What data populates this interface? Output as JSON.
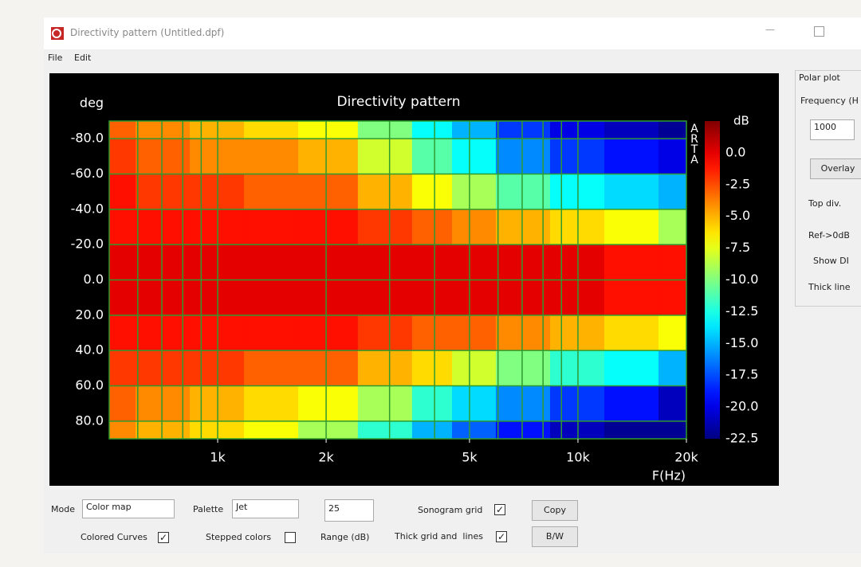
{
  "window": {
    "title": "Directivity pattern (Untitled.dpf)",
    "menu": [
      "File",
      "Edit"
    ]
  },
  "chart_data": {
    "type": "heatmap",
    "title": "Directivity pattern",
    "y_label": "deg",
    "x_label": "F(Hz)",
    "watermark": "ARTA",
    "colorbar_label": "dB",
    "colormap": "jet",
    "log_x": true,
    "grid": true,
    "grid_color": "#2f9a2f",
    "x": [
      500,
      700,
      1000,
      1400,
      2000,
      3000,
      4000,
      5000,
      7000,
      10000,
      14000,
      20000
    ],
    "y": [
      -90,
      -70,
      -50,
      -30,
      -10,
      10,
      30,
      50,
      70,
      90
    ],
    "z": [
      [
        -3,
        -4,
        -5,
        -6,
        -7,
        -10,
        -13,
        -15,
        -18,
        -20,
        -21,
        -22
      ],
      [
        -2,
        -3,
        -4,
        -4,
        -5,
        -8,
        -11,
        -13,
        -16,
        -18,
        -19,
        -20
      ],
      [
        -1,
        -2,
        -2,
        -3,
        -3,
        -5,
        -7,
        -9,
        -11,
        -13,
        -14,
        -15
      ],
      [
        -1,
        -1,
        -1,
        -1,
        -1,
        -2,
        -3,
        -4,
        -5,
        -6,
        -7,
        -9
      ],
      [
        0,
        0,
        0,
        0,
        0,
        0,
        0,
        0,
        0,
        0,
        -1,
        -1
      ],
      [
        0,
        0,
        0,
        0,
        0,
        0,
        0,
        0,
        0,
        0,
        -1,
        -1
      ],
      [
        -1,
        -1,
        -1,
        -1,
        -1,
        -2,
        -3,
        -3,
        -4,
        -5,
        -6,
        -7
      ],
      [
        -2,
        -2,
        -2,
        -3,
        -3,
        -5,
        -6,
        -8,
        -10,
        -12,
        -13,
        -15
      ],
      [
        -3,
        -4,
        -5,
        -6,
        -7,
        -9,
        -12,
        -14,
        -16,
        -18,
        -19,
        -21
      ],
      [
        -4,
        -5,
        -6,
        -7,
        -9,
        -12,
        -15,
        -17,
        -19,
        -21,
        -22,
        -22
      ]
    ],
    "xlim": [
      500,
      20000
    ],
    "ylim": [
      -90,
      90
    ],
    "xticks": [
      {
        "value": 1000,
        "label": "1k"
      },
      {
        "value": 2000,
        "label": "2k"
      },
      {
        "value": 5000,
        "label": "5k"
      },
      {
        "value": 10000,
        "label": "10k"
      },
      {
        "value": 20000,
        "label": "20k"
      }
    ],
    "xgrid": [
      600,
      700,
      800,
      900,
      1000,
      2000,
      3000,
      4000,
      5000,
      6000,
      7000,
      8000,
      9000,
      10000
    ],
    "yticks": [
      {
        "value": -80,
        "label": "-80.0"
      },
      {
        "value": -60,
        "label": "-60.0"
      },
      {
        "value": -40,
        "label": "-40.0"
      },
      {
        "value": -20,
        "label": "-20.0"
      },
      {
        "value": 0,
        "label": "0.0"
      },
      {
        "value": 20,
        "label": "20.0"
      },
      {
        "value": 40,
        "label": "40.0"
      },
      {
        "value": 60,
        "label": "60.0"
      },
      {
        "value": 80,
        "label": "80.0"
      }
    ],
    "clim": [
      -22.5,
      2.5
    ],
    "cticks": [
      {
        "value": 0,
        "label": "0.0"
      },
      -2.5,
      {
        "value": -5,
        "label": "-5.0"
      },
      -7.5,
      {
        "value": -10,
        "label": "-10.0"
      },
      -12.5,
      {
        "value": -15,
        "label": "-15.0"
      },
      -17.5,
      {
        "value": -20,
        "label": "-20.0"
      },
      -22.5
    ]
  },
  "polar": {
    "title": "Polar plot",
    "freq_label": "Frequency (H",
    "freq_value": 1000,
    "overlay": "Overlay",
    "top_div": "Top div.",
    "ref": "Ref->0dB",
    "show_di": "Show DI",
    "thick_line": "Thick line"
  },
  "controls": {
    "mode_label": "Mode",
    "mode_value": "Color map",
    "palette_label": "Palette",
    "palette_value": "Jet",
    "range_value": 25,
    "range_label": "Range (dB)",
    "sonogram_grid": {
      "label": "Sonogram grid",
      "checked": true
    },
    "colored_curves": {
      "label": "Colored Curves",
      "checked": true
    },
    "stepped_colors": {
      "label": "Stepped colors",
      "checked": false
    },
    "thick_grid": {
      "label": "Thick grid and  lines",
      "checked": true
    },
    "copy": "Copy",
    "bw": "B/W"
  }
}
